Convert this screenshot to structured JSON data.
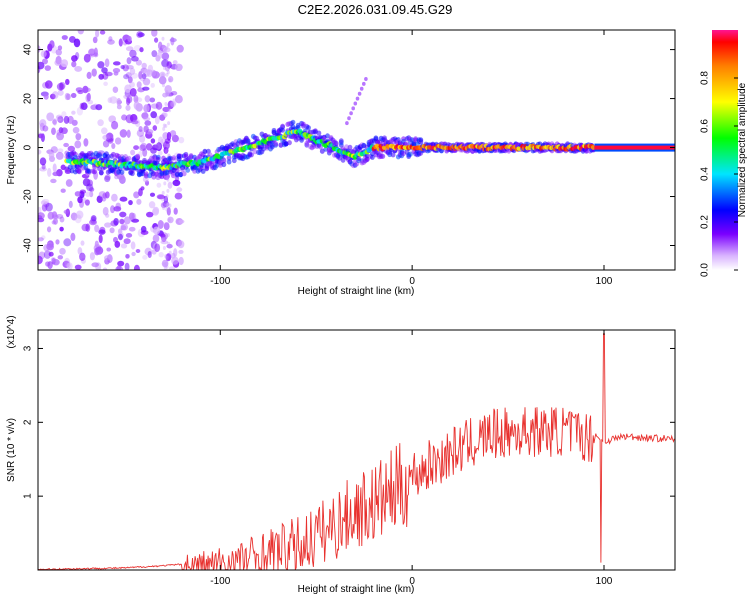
{
  "title": "C2E2.2026.031.09.45.G29",
  "chart_data": [
    {
      "type": "heatmap",
      "xlabel": "Height of straight line (km)",
      "ylabel": "Frequency (Hz)",
      "xlim": [
        -195,
        137
      ],
      "ylim": [
        -50,
        48
      ],
      "xticks": [
        -100,
        0,
        100
      ],
      "yticks": [
        -40,
        -20,
        0,
        20,
        40
      ],
      "colorbar": {
        "label": "Normalized spectral amplitude",
        "range": [
          0.0,
          1.0
        ],
        "ticks": [
          "0.0",
          "0.2",
          "0.4",
          "0.6",
          "0.8"
        ]
      },
      "ridge": {
        "x": [
          -170,
          -150,
          -130,
          -110,
          -90,
          -70,
          -60,
          -50,
          -40,
          -30,
          -20,
          -10,
          0,
          20,
          50,
          80,
          95,
          137
        ],
        "y": [
          -6,
          -7,
          -8,
          -6,
          -1,
          4,
          7,
          3,
          0,
          -4,
          0,
          0,
          0,
          0,
          0,
          0,
          0,
          0
        ]
      }
    },
    {
      "type": "line",
      "xlabel": "Height of straight line (km)",
      "ylabel": "SNR (10 * v/v)",
      "scale_label": "(x10^4)",
      "xlim": [
        -195,
        137
      ],
      "ylim": [
        0,
        3.25
      ],
      "xticks": [
        -100,
        0,
        100
      ],
      "yticks": [
        1,
        2,
        3
      ],
      "color": "#e8312e",
      "envelope": {
        "x": [
          -195,
          -150,
          -130,
          -100,
          -80,
          -60,
          -40,
          -30,
          -20,
          0,
          20,
          40,
          60,
          80,
          95,
          100,
          110,
          137
        ],
        "y": [
          0.01,
          0.03,
          0.06,
          0.12,
          0.25,
          0.4,
          0.7,
          0.9,
          1.0,
          1.35,
          1.65,
          1.9,
          1.95,
          1.95,
          1.85,
          1.75,
          1.82,
          1.78
        ]
      },
      "spike": {
        "x": 100,
        "max": 3.2,
        "min": 0.1
      }
    }
  ]
}
